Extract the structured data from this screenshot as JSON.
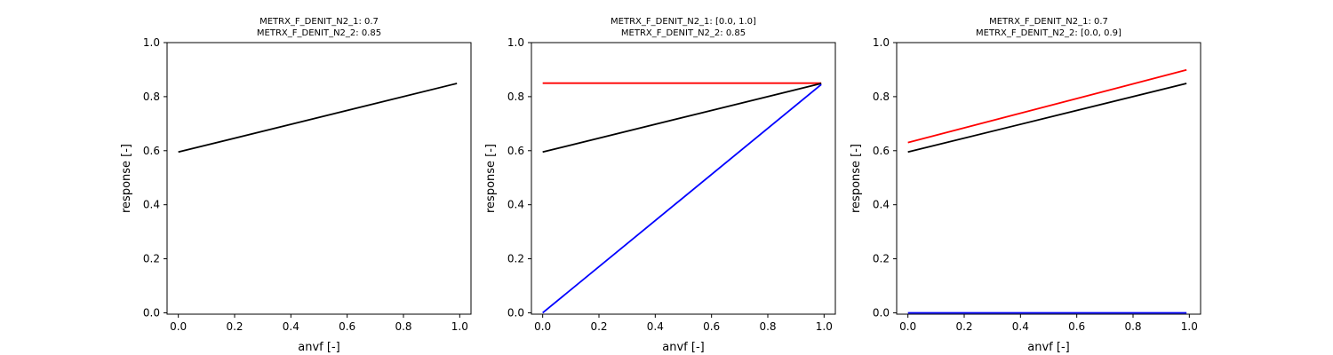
{
  "chart_data": [
    {
      "type": "line",
      "title": [
        "METRX_F_DENIT_N2_1: 0.7",
        "METRX_F_DENIT_N2_2: 0.85"
      ],
      "xlabel": "anvf [-]",
      "ylabel": "response [-]",
      "xlim": [
        -0.04,
        1.04
      ],
      "ylim": [
        -0.005,
        1.0
      ],
      "xticks": [
        "0.0",
        "0.2",
        "0.4",
        "0.6",
        "0.8",
        "1.0"
      ],
      "yticks": [
        "0.0",
        "0.2",
        "0.4",
        "0.6",
        "0.8",
        "1.0"
      ],
      "grid": false,
      "series": [
        {
          "color": "#000000",
          "x": [
            0.0,
            0.99
          ],
          "y": [
            0.595,
            0.849
          ]
        }
      ]
    },
    {
      "type": "line",
      "title": [
        "METRX_F_DENIT_N2_1: [0.0, 1.0]",
        "METRX_F_DENIT_N2_2: 0.85"
      ],
      "xlabel": "anvf [-]",
      "ylabel": "response [-]",
      "xlim": [
        -0.04,
        1.04
      ],
      "ylim": [
        -0.005,
        1.0
      ],
      "xticks": [
        "0.0",
        "0.2",
        "0.4",
        "0.6",
        "0.8",
        "1.0"
      ],
      "yticks": [
        "0.0",
        "0.2",
        "0.4",
        "0.6",
        "0.8",
        "1.0"
      ],
      "grid": false,
      "series": [
        {
          "color": "#ff0000",
          "x": [
            0.0,
            0.99
          ],
          "y": [
            0.85,
            0.85
          ]
        },
        {
          "color": "#000000",
          "x": [
            0.0,
            0.99
          ],
          "y": [
            0.595,
            0.849
          ]
        },
        {
          "color": "#0000ff",
          "x": [
            0.0,
            0.99
          ],
          "y": [
            0.0,
            0.845
          ]
        }
      ]
    },
    {
      "type": "line",
      "title": [
        "METRX_F_DENIT_N2_1: 0.7",
        "METRX_F_DENIT_N2_2: [0.0, 0.9]"
      ],
      "xlabel": "anvf [-]",
      "ylabel": "response [-]",
      "xlim": [
        -0.04,
        1.04
      ],
      "ylim": [
        -0.005,
        1.0
      ],
      "xticks": [
        "0.0",
        "0.2",
        "0.4",
        "0.6",
        "0.8",
        "1.0"
      ],
      "yticks": [
        "0.0",
        "0.2",
        "0.4",
        "0.6",
        "0.8",
        "1.0"
      ],
      "grid": false,
      "series": [
        {
          "color": "#ff0000",
          "x": [
            0.0,
            0.99
          ],
          "y": [
            0.63,
            0.899
          ]
        },
        {
          "color": "#000000",
          "x": [
            0.0,
            0.99
          ],
          "y": [
            0.595,
            0.849
          ]
        },
        {
          "color": "#0000ff",
          "x": [
            0.0,
            0.99
          ],
          "y": [
            0.0,
            0.0
          ]
        }
      ]
    }
  ]
}
